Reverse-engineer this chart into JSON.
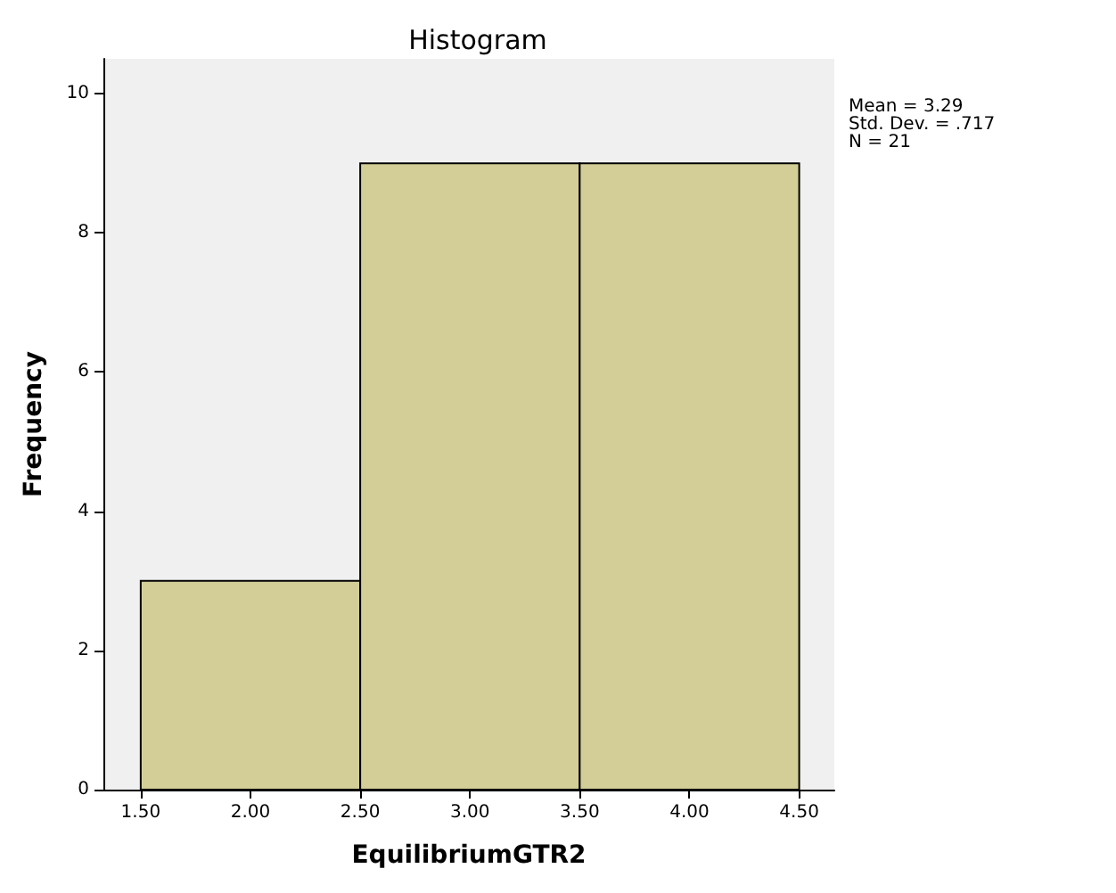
{
  "chart_data": {
    "type": "histogram",
    "title": "Histogram",
    "xlabel": "EquilibriumGTR2",
    "ylabel": "Frequency",
    "bins": [
      1.5,
      2.5,
      3.5,
      4.5
    ],
    "values": [
      3,
      9,
      9
    ],
    "color": "#d3ce97",
    "xlim": [
      1.33,
      4.66
    ],
    "ylim": [
      0,
      10.5
    ],
    "xticks": [
      {
        "value": 1.5,
        "label": "1.50"
      },
      {
        "value": 2,
        "label": "2.00"
      },
      {
        "value": 2.5,
        "label": "2.50"
      },
      {
        "value": 3,
        "label": "3.00"
      },
      {
        "value": 3.5,
        "label": "3.50"
      },
      {
        "value": 4,
        "label": "4.00"
      },
      {
        "value": 4.5,
        "label": "4.50"
      }
    ],
    "yticks": [
      0,
      2,
      4,
      6,
      8,
      10
    ],
    "annotations": [
      "Mean = 3.29",
      "Std. Dev. = .717",
      "N = 21"
    ],
    "grid": false
  }
}
